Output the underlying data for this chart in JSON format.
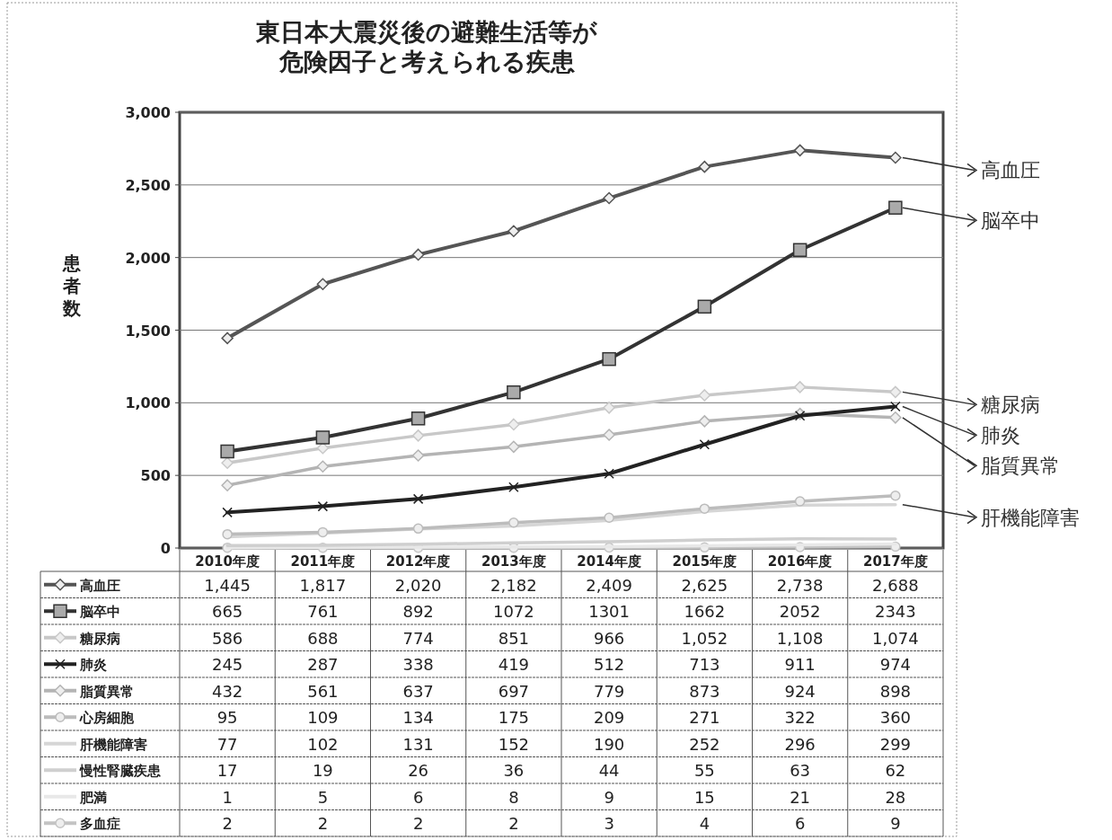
{
  "chart_data": {
    "type": "line",
    "title": "東日本大震災後の避難生活等が危険因子と考えられる疾患",
    "ylabel": "患者数",
    "categories": [
      "2010年度",
      "2011年度",
      "2012年度",
      "2013年度",
      "2014年度",
      "2015年度",
      "2016年度",
      "2017年度"
    ],
    "ylim": [
      0,
      3000
    ],
    "yticks": [
      0,
      500,
      {
        "value": 1000,
        "label": "1,000"
      },
      {
        "value": 1500,
        "label": "1,500"
      },
      {
        "value": 2000,
        "label": "2,000"
      },
      {
        "value": 2500,
        "label": "2,500"
      },
      {
        "value": 3000,
        "label": "3,000"
      }
    ],
    "grid": "y",
    "legend": "bottom",
    "marker": "diamond",
    "line_style": "solid",
    "series": [
      {
        "name": "高血圧",
        "color": "#555555",
        "values": [
          1445,
          1817,
          2020,
          2182,
          2409,
          2625,
          2738,
          2688
        ],
        "value_labels": [
          "1,445",
          "1,817",
          "2,020",
          "2,182",
          "2,409",
          "2,625",
          "2,738",
          "2,688"
        ]
      },
      {
        "name": "脳卒中",
        "color": "#333333",
        "marker": "square",
        "values": [
          665,
          761,
          892,
          1072,
          1301,
          1662,
          2052,
          2343
        ],
        "value_labels": [
          "665",
          "761",
          "892",
          "1072",
          "1301",
          "1662",
          "2052",
          "2343"
        ]
      },
      {
        "name": "糖尿病",
        "color": "#c8c8c8",
        "values": [
          586,
          688,
          774,
          851,
          966,
          1052,
          1108,
          1074
        ],
        "value_labels": [
          "586",
          "688",
          "774",
          "851",
          "966",
          "1,052",
          "1,108",
          "1,074"
        ]
      },
      {
        "name": "肺炎",
        "color": "#222222",
        "marker": "cross",
        "values": [
          245,
          287,
          338,
          419,
          512,
          713,
          911,
          974
        ],
        "value_labels": [
          "245",
          "287",
          "338",
          "419",
          "512",
          "713",
          "911",
          "974"
        ]
      },
      {
        "name": "脂質異常",
        "color": "#b4b4b4",
        "values": [
          432,
          561,
          637,
          697,
          779,
          873,
          924,
          898
        ],
        "value_labels": [
          "432",
          "561",
          "637",
          "697",
          "779",
          "873",
          "924",
          "898"
        ]
      },
      {
        "name": "心房細胞",
        "color": "#bcbcbc",
        "marker": "circle",
        "values": [
          95,
          109,
          134,
          175,
          209,
          271,
          322,
          360
        ],
        "value_labels": [
          "95",
          "109",
          "134",
          "175",
          "209",
          "271",
          "322",
          "360"
        ]
      },
      {
        "name": "肝機能障害",
        "color": "#d6d6d6",
        "marker": "none",
        "values": [
          77,
          102,
          131,
          152,
          190,
          252,
          296,
          299
        ],
        "value_labels": [
          "77",
          "102",
          "131",
          "152",
          "190",
          "252",
          "296",
          "299"
        ]
      },
      {
        "name": "慢性腎臓疾患",
        "color": "#cfcfcf",
        "marker": "none",
        "values": [
          17,
          19,
          26,
          36,
          44,
          55,
          63,
          62
        ],
        "value_labels": [
          "17",
          "19",
          "26",
          "36",
          "44",
          "55",
          "63",
          "62"
        ]
      },
      {
        "name": "肥満",
        "color": "#e8e8e8",
        "marker": "none",
        "values": [
          1,
          5,
          6,
          8,
          9,
          15,
          21,
          28
        ],
        "value_labels": [
          "1",
          "5",
          "6",
          "8",
          "9",
          "15",
          "21",
          "28"
        ]
      },
      {
        "name": "多血症",
        "color": "#c4c4c4",
        "marker": "circle",
        "values": [
          2,
          2,
          2,
          2,
          3,
          4,
          6,
          9
        ],
        "value_labels": [
          "2",
          "2",
          "2",
          "2",
          "3",
          "4",
          "6",
          "9"
        ]
      }
    ],
    "annotations": [
      {
        "text": "高血圧",
        "x": "2017年度",
        "y": 2688
      },
      {
        "text": "脳卒中",
        "x": "2017年度",
        "y": 2343
      },
      {
        "text": "糖尿病",
        "x": "2017年度",
        "y": 1074
      },
      {
        "text": "肺炎",
        "x": "2017年度",
        "y": 974
      },
      {
        "text": "脂質異常",
        "x": "2017年度",
        "y": 898
      },
      {
        "text": "肝機能障害",
        "x": "2017年度",
        "y": 299
      }
    ]
  }
}
